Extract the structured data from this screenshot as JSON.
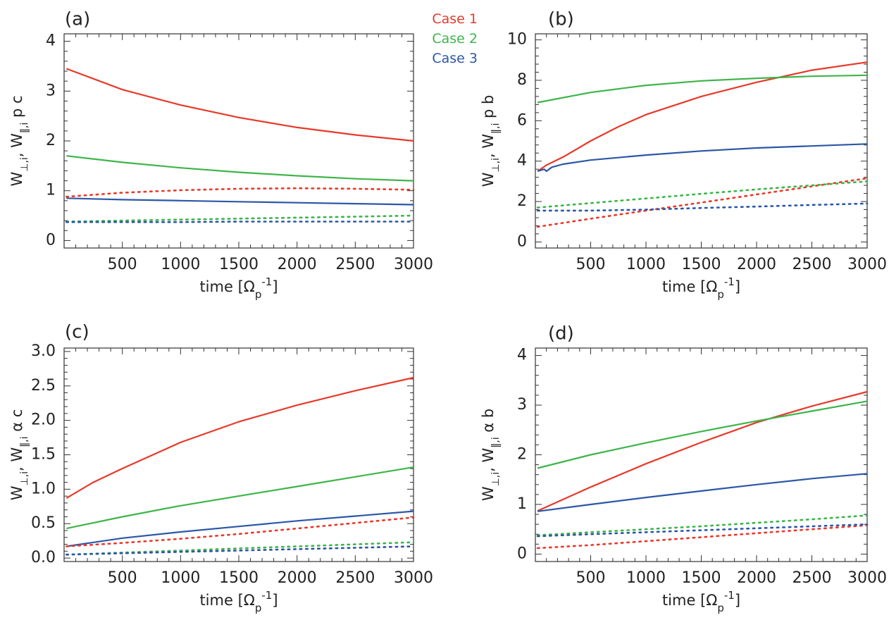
{
  "legend": [
    {
      "label": "Case 1",
      "color": "#e8392a"
    },
    {
      "label": "Case 2",
      "color": "#3db54a"
    },
    {
      "label": "Case 3",
      "color": "#2c57a6"
    }
  ],
  "chart_data": [
    {
      "type": "line",
      "panel": "(a)",
      "xlabel": "time [Ω_p^-1]",
      "ylabel": "W⊥,i, W‖,i p c",
      "xlim": [
        0,
        3000
      ],
      "ylim": [
        -0.15,
        4.15
      ],
      "xticks": [
        "500",
        "1000",
        "1500",
        "2000",
        "2500",
        "3000"
      ],
      "yticks": [
        "0",
        "1",
        "2",
        "3",
        "4"
      ],
      "series": [
        {
          "case": "Case 1",
          "style": "solid",
          "x": [
            20,
            500,
            1000,
            1500,
            2000,
            2500,
            3000
          ],
          "y": [
            3.45,
            3.03,
            2.72,
            2.47,
            2.27,
            2.12,
            2.0
          ]
        },
        {
          "case": "Case 2",
          "style": "solid",
          "x": [
            20,
            500,
            1000,
            1500,
            2000,
            2500,
            3000
          ],
          "y": [
            1.7,
            1.57,
            1.46,
            1.37,
            1.3,
            1.24,
            1.2
          ]
        },
        {
          "case": "Case 3",
          "style": "solid",
          "x": [
            20,
            500,
            1000,
            1500,
            2000,
            2500,
            3000
          ],
          "y": [
            0.85,
            0.82,
            0.8,
            0.78,
            0.76,
            0.74,
            0.72
          ]
        },
        {
          "case": "Case 1",
          "style": "dotted",
          "x": [
            20,
            500,
            1000,
            1500,
            2000,
            2500,
            3000
          ],
          "y": [
            0.88,
            0.96,
            1.01,
            1.04,
            1.05,
            1.04,
            1.02
          ]
        },
        {
          "case": "Case 2",
          "style": "dotted",
          "x": [
            20,
            500,
            1000,
            1500,
            2000,
            2500,
            3000
          ],
          "y": [
            0.38,
            0.4,
            0.42,
            0.44,
            0.46,
            0.48,
            0.5
          ]
        },
        {
          "case": "Case 3",
          "style": "dotted",
          "x": [
            20,
            500,
            1000,
            1500,
            2000,
            2500,
            3000
          ],
          "y": [
            0.37,
            0.37,
            0.37,
            0.38,
            0.38,
            0.38,
            0.38
          ]
        }
      ]
    },
    {
      "type": "line",
      "panel": "(b)",
      "xlabel": "time [Ω_p^-1]",
      "ylabel": "W⊥,i, W‖,i p b",
      "xlim": [
        0,
        3000
      ],
      "ylim": [
        -0.3,
        10.3
      ],
      "xticks": [
        "500",
        "1000",
        "1500",
        "2000",
        "2500",
        "3000"
      ],
      "yticks": [
        "0",
        "2",
        "4",
        "6",
        "8",
        "10"
      ],
      "series": [
        {
          "case": "Case 1",
          "style": "solid",
          "x": [
            20,
            100,
            250,
            500,
            750,
            1000,
            1500,
            2000,
            2500,
            3000
          ],
          "y": [
            3.5,
            3.8,
            4.2,
            5.0,
            5.7,
            6.3,
            7.2,
            7.9,
            8.5,
            8.9
          ]
        },
        {
          "case": "Case 2",
          "style": "solid",
          "x": [
            20,
            500,
            1000,
            1500,
            2000,
            2500,
            3000
          ],
          "y": [
            6.9,
            7.4,
            7.75,
            7.97,
            8.1,
            8.2,
            8.25
          ]
        },
        {
          "case": "Case 3",
          "style": "solid",
          "x": [
            20,
            80,
            100,
            150,
            250,
            500,
            1000,
            1500,
            2000,
            2500,
            3000
          ],
          "y": [
            3.5,
            3.6,
            3.5,
            3.7,
            3.85,
            4.05,
            4.3,
            4.5,
            4.65,
            4.75,
            4.85
          ]
        },
        {
          "case": "Case 1",
          "style": "dotted",
          "x": [
            20,
            500,
            1000,
            1500,
            2000,
            2500,
            3000
          ],
          "y": [
            0.75,
            1.15,
            1.55,
            1.95,
            2.35,
            2.75,
            3.15
          ]
        },
        {
          "case": "Case 2",
          "style": "dotted",
          "x": [
            20,
            500,
            1000,
            1500,
            2000,
            2500,
            3000
          ],
          "y": [
            1.7,
            1.92,
            2.15,
            2.38,
            2.6,
            2.8,
            3.0
          ]
        },
        {
          "case": "Case 3",
          "style": "dotted",
          "x": [
            20,
            500,
            1000,
            1500,
            2000,
            2500,
            3000
          ],
          "y": [
            1.55,
            1.55,
            1.6,
            1.68,
            1.75,
            1.83,
            1.9
          ]
        }
      ]
    },
    {
      "type": "line",
      "panel": "(c)",
      "xlabel": "time [Ω_p^-1]",
      "ylabel": "W⊥,i, W‖,i α c",
      "xlim": [
        0,
        3000
      ],
      "ylim": [
        -0.05,
        3.05
      ],
      "xticks": [
        "500",
        "1000",
        "1500",
        "2000",
        "2500",
        "3000"
      ],
      "yticks": [
        "0.0",
        "0.5",
        "1.0",
        "1.5",
        "2.0",
        "2.5",
        "3.0"
      ],
      "series": [
        {
          "case": "Case 1",
          "style": "solid",
          "x": [
            20,
            250,
            500,
            1000,
            1500,
            2000,
            2500,
            3000
          ],
          "y": [
            0.87,
            1.1,
            1.3,
            1.68,
            1.98,
            2.22,
            2.43,
            2.62
          ]
        },
        {
          "case": "Case 2",
          "style": "solid",
          "x": [
            20,
            500,
            1000,
            1500,
            2000,
            2500,
            3000
          ],
          "y": [
            0.43,
            0.6,
            0.76,
            0.9,
            1.04,
            1.18,
            1.32
          ]
        },
        {
          "case": "Case 3",
          "style": "solid",
          "x": [
            20,
            500,
            1000,
            1500,
            2000,
            2500,
            3000
          ],
          "y": [
            0.17,
            0.29,
            0.38,
            0.46,
            0.54,
            0.61,
            0.68
          ]
        },
        {
          "case": "Case 1",
          "style": "dotted",
          "x": [
            20,
            500,
            1000,
            1500,
            2000,
            2500,
            3000
          ],
          "y": [
            0.17,
            0.22,
            0.28,
            0.35,
            0.43,
            0.51,
            0.59
          ]
        },
        {
          "case": "Case 2",
          "style": "dotted",
          "x": [
            20,
            500,
            1000,
            1500,
            2000,
            2500,
            3000
          ],
          "y": [
            0.05,
            0.08,
            0.11,
            0.14,
            0.17,
            0.2,
            0.23
          ]
        },
        {
          "case": "Case 3",
          "style": "dotted",
          "x": [
            20,
            500,
            1000,
            1500,
            2000,
            2500,
            3000
          ],
          "y": [
            0.05,
            0.07,
            0.09,
            0.11,
            0.13,
            0.15,
            0.17
          ]
        }
      ]
    },
    {
      "type": "line",
      "panel": "(d)",
      "xlabel": "time [Ω_p^-1]",
      "ylabel": "W⊥,i, W‖,i α b",
      "xlim": [
        0,
        3000
      ],
      "ylim": [
        -0.15,
        4.15
      ],
      "xticks": [
        "500",
        "1000",
        "1500",
        "2000",
        "2500",
        "3000"
      ],
      "yticks": [
        "0",
        "1",
        "2",
        "3",
        "4"
      ],
      "series": [
        {
          "case": "Case 1",
          "style": "solid",
          "x": [
            20,
            500,
            1000,
            1500,
            2000,
            2500,
            3000
          ],
          "y": [
            0.87,
            1.35,
            1.82,
            2.25,
            2.65,
            2.98,
            3.27
          ]
        },
        {
          "case": "Case 2",
          "style": "solid",
          "x": [
            20,
            500,
            1000,
            1500,
            2000,
            2500,
            3000
          ],
          "y": [
            1.73,
            2.0,
            2.24,
            2.47,
            2.68,
            2.88,
            3.08
          ]
        },
        {
          "case": "Case 3",
          "style": "solid",
          "x": [
            20,
            500,
            1000,
            1500,
            2000,
            2500,
            3000
          ],
          "y": [
            0.86,
            1.0,
            1.14,
            1.27,
            1.4,
            1.52,
            1.62
          ]
        },
        {
          "case": "Case 1",
          "style": "dotted",
          "x": [
            20,
            500,
            1000,
            1500,
            2000,
            2500,
            3000
          ],
          "y": [
            0.12,
            0.18,
            0.26,
            0.34,
            0.42,
            0.5,
            0.58
          ]
        },
        {
          "case": "Case 2",
          "style": "dotted",
          "x": [
            20,
            500,
            1000,
            1500,
            2000,
            2500,
            3000
          ],
          "y": [
            0.38,
            0.44,
            0.5,
            0.56,
            0.63,
            0.7,
            0.78
          ]
        },
        {
          "case": "Case 3",
          "style": "dotted",
          "x": [
            20,
            500,
            1000,
            1500,
            2000,
            2500,
            3000
          ],
          "y": [
            0.36,
            0.4,
            0.44,
            0.48,
            0.52,
            0.56,
            0.6
          ]
        }
      ]
    }
  ]
}
